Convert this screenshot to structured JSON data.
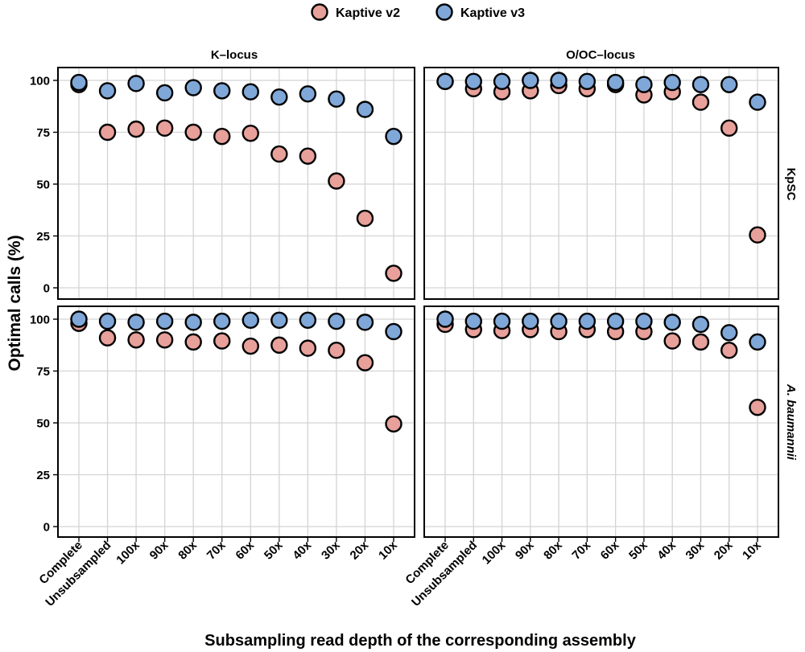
{
  "chart_data": {
    "type": "scatter",
    "xlabel": "Subsampling read depth of the corresponding assembly",
    "ylabel": "Optimal calls (%)",
    "categories": [
      "Complete",
      "Unsubsampled",
      "100x",
      "90x",
      "80x",
      "70x",
      "60x",
      "50x",
      "40x",
      "30x",
      "20x",
      "10x"
    ],
    "ylim": [
      0,
      100
    ],
    "yticks": [
      0,
      25,
      50,
      75,
      100
    ],
    "legend": {
      "position": "top-center",
      "entries": [
        {
          "name": "Kaptive v2",
          "color": "#e8a09a"
        },
        {
          "name": "Kaptive v3",
          "color": "#7fa8d9"
        }
      ]
    },
    "columns": [
      "K–locus",
      "O/OC–locus"
    ],
    "rows": [
      "KpSC",
      "A. baumannii"
    ],
    "panels": [
      {
        "row": "KpSC",
        "column": "K–locus",
        "series": [
          {
            "name": "Kaptive v2",
            "values": [
              98,
              75,
              76.5,
              77,
              75,
              73,
              74.5,
              64.5,
              63.5,
              51.5,
              33.5,
              7
            ]
          },
          {
            "name": "Kaptive v3",
            "values": [
              99,
              95,
              98.5,
              94,
              96.5,
              95,
              94.5,
              92,
              93.5,
              91,
              86,
              73
            ]
          }
        ]
      },
      {
        "row": "KpSC",
        "column": "O/OC–locus",
        "series": [
          {
            "name": "Kaptive v2",
            "values": [
              99.5,
              96,
              94.5,
              95,
              97.5,
              96,
              98,
              93,
              94.5,
              89.5,
              77,
              25.5
            ]
          },
          {
            "name": "Kaptive v3",
            "values": [
              99.5,
              99.5,
              99.5,
              100,
              100,
              99.5,
              99,
              98,
              99,
              98,
              98,
              89.5
            ]
          }
        ]
      },
      {
        "row": "A. baumannii",
        "column": "K–locus",
        "series": [
          {
            "name": "Kaptive v2",
            "values": [
              98,
              91,
              90,
              90,
              89,
              89.5,
              87,
              87.5,
              86,
              85,
              79,
              49.5
            ]
          },
          {
            "name": "Kaptive v3",
            "values": [
              100,
              99,
              98.5,
              99,
              98.5,
              99,
              99.5,
              99.5,
              99.5,
              99,
              98.5,
              94
            ]
          }
        ]
      },
      {
        "row": "A. baumannii",
        "column": "O/OC–locus",
        "series": [
          {
            "name": "Kaptive v2",
            "values": [
              97.5,
              95,
              94.5,
              95,
              94,
              95,
              94,
              94,
              89.5,
              89,
              85,
              57.5
            ]
          },
          {
            "name": "Kaptive v3",
            "values": [
              100,
              99,
              99,
              99,
              99,
              99,
              99,
              99,
              98.5,
              97.5,
              93.5,
              89
            ]
          }
        ]
      }
    ]
  }
}
